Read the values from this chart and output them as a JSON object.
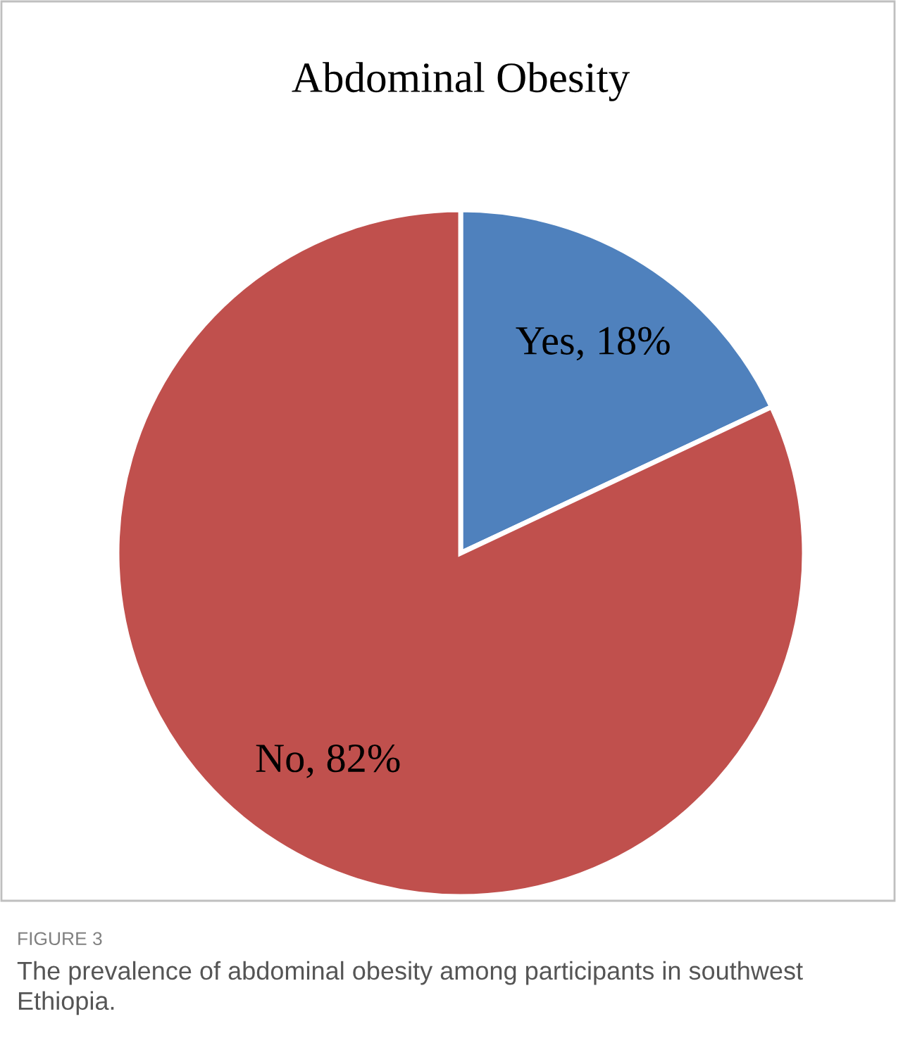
{
  "chart_data": {
    "type": "pie",
    "title": "Abdominal Obesity",
    "categories": [
      "Yes",
      "No"
    ],
    "values": [
      18,
      82
    ],
    "colors": [
      "#4f81bd",
      "#c0504d"
    ],
    "value_labels": [
      "18%",
      "82%"
    ],
    "annotations": [
      "FIGURE 3",
      "The prevalence of abdominal obesity among participants in southwest Ethiopia."
    ]
  }
}
